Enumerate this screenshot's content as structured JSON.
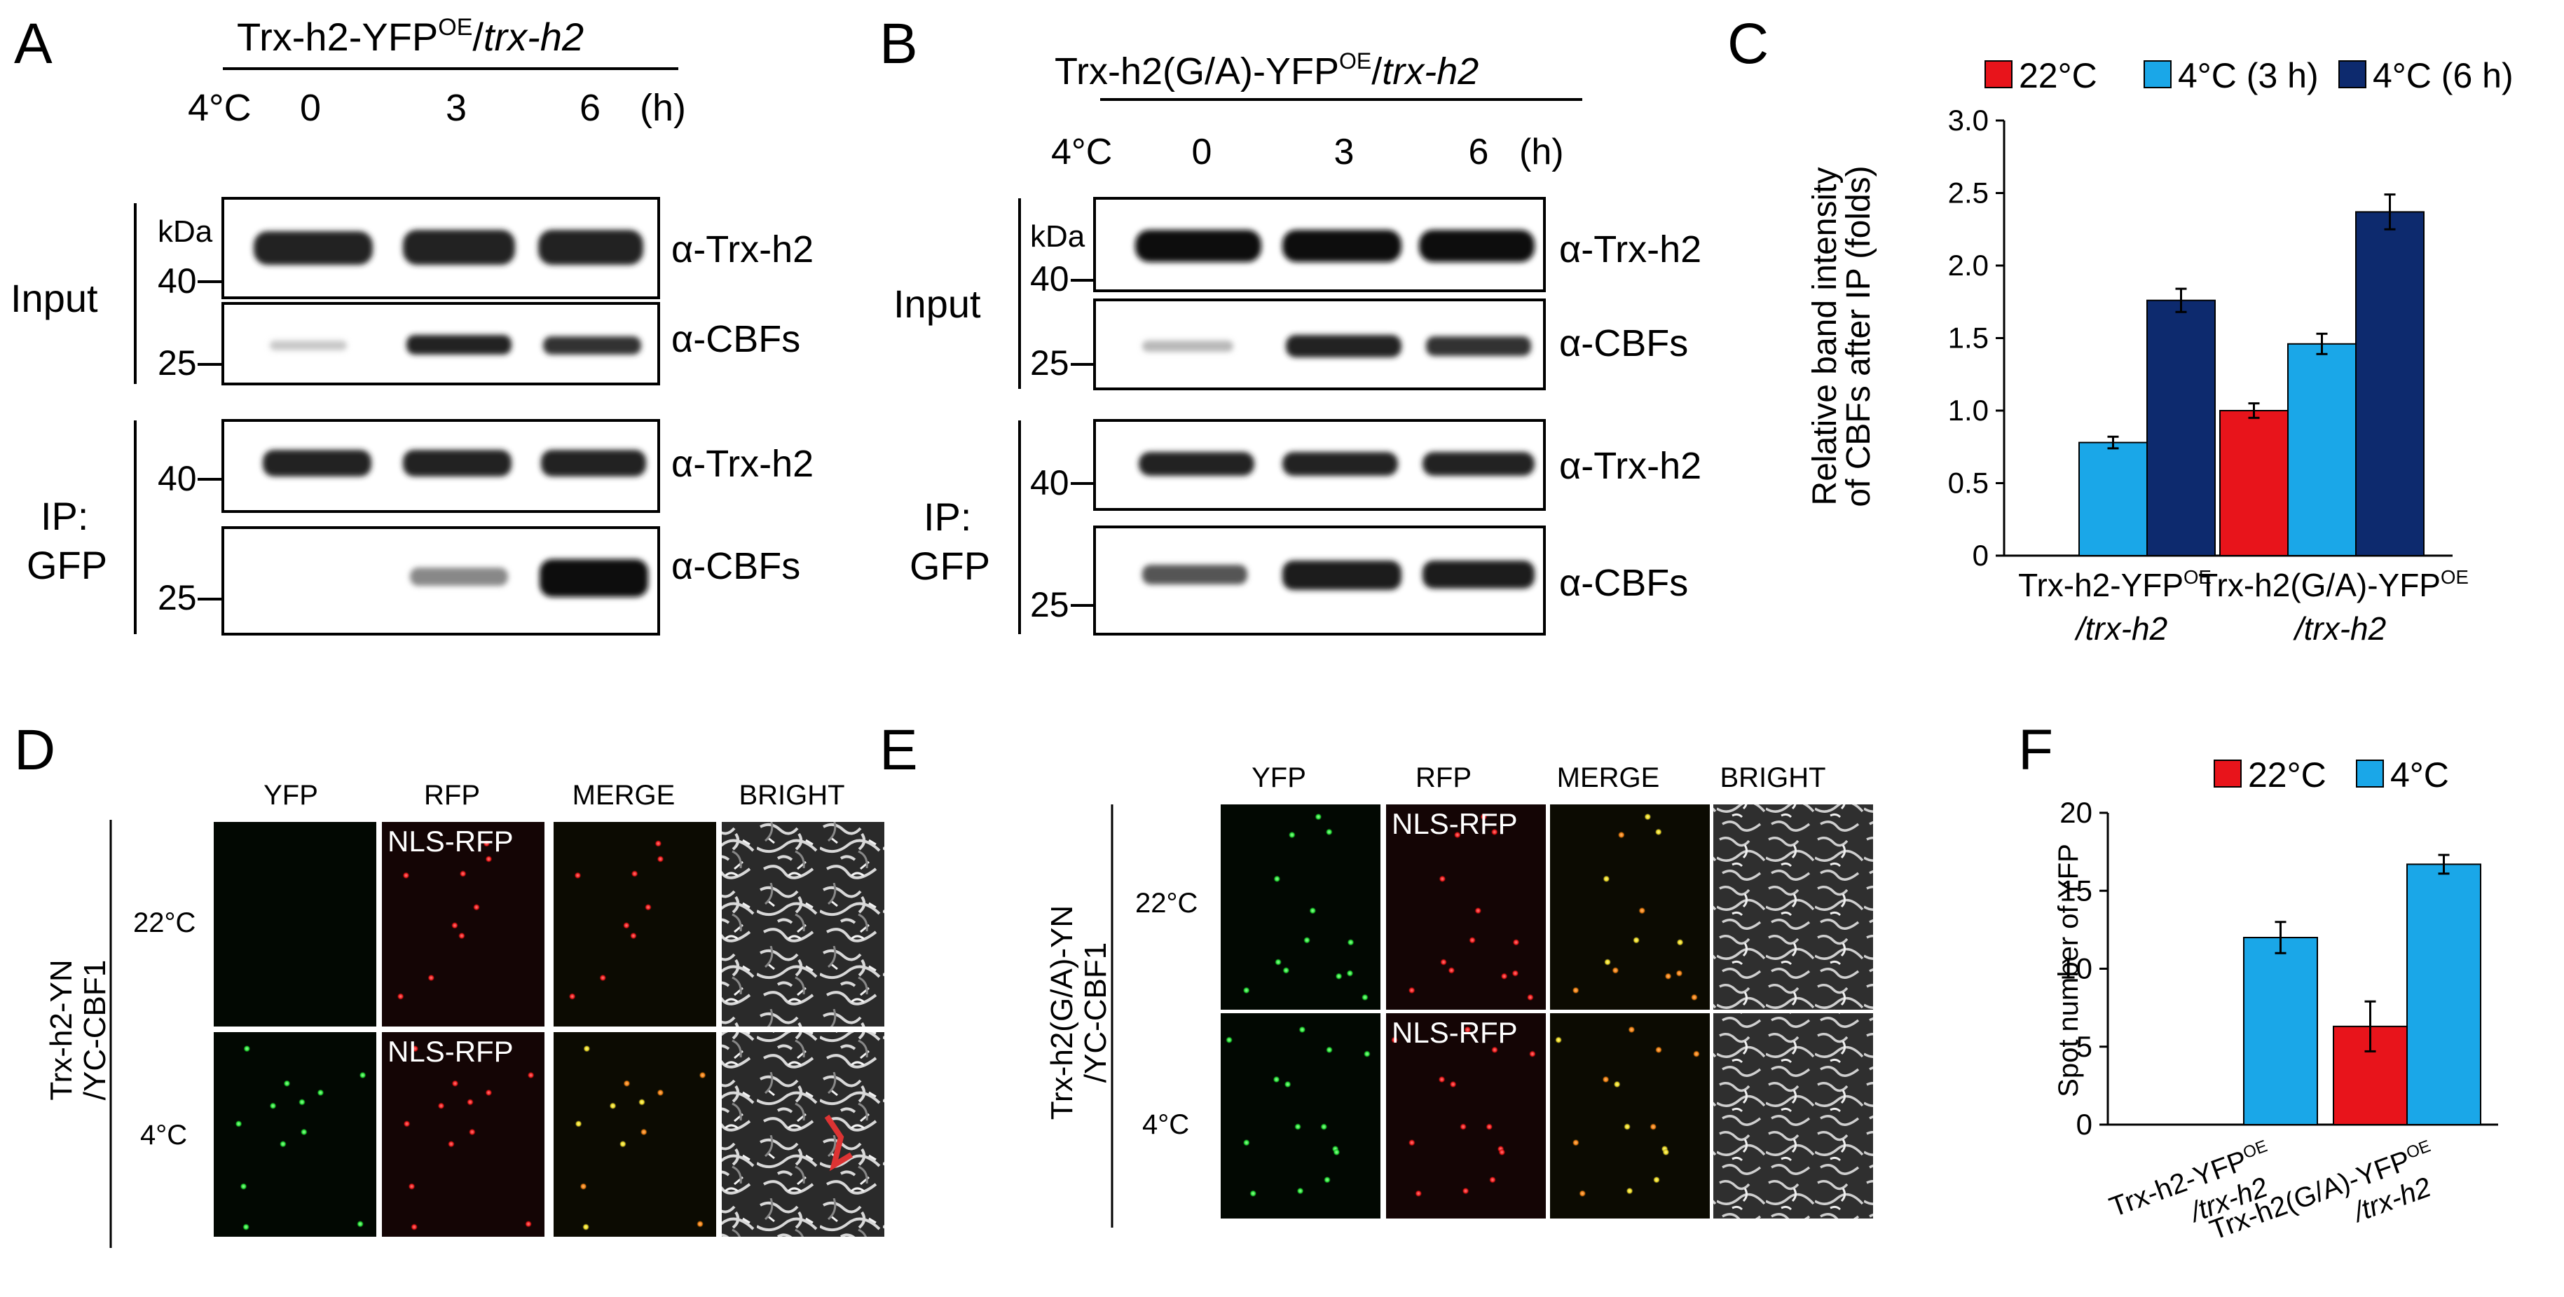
{
  "panels": {
    "A": {
      "letter": "A",
      "title_main": "Trx-h2-YFP",
      "title_sup": "OE",
      "title_sep": "/",
      "title_italic": "trx-h2",
      "temp_label": "4°C",
      "timepoints": [
        "0",
        "3",
        "6"
      ],
      "time_unit": "(h)",
      "kda": "kDa",
      "input_label": "Input",
      "ip_label_1": "IP:",
      "ip_label_2": "GFP",
      "markers": [
        "40",
        "25",
        "40",
        "25"
      ],
      "antibodies": [
        "α-Trx-h2",
        "α-CBFs",
        "α-Trx-h2",
        "α-CBFs"
      ]
    },
    "B": {
      "letter": "B",
      "title_main": "Trx-h2(G/A)-YFP",
      "title_sup": "OE",
      "title_sep": "/",
      "title_italic": "trx-h2",
      "temp_label": "4°C",
      "timepoints": [
        "0",
        "3",
        "6"
      ],
      "time_unit": "(h)",
      "kda": "kDa",
      "input_label": "Input",
      "ip_label_1": "IP:",
      "ip_label_2": "GFP",
      "markers": [
        "40",
        "25",
        "40",
        "25"
      ],
      "antibodies": [
        "α-Trx-h2",
        "α-CBFs",
        "α-Trx-h2",
        "α-CBFs"
      ]
    },
    "D": {
      "letter": "D",
      "columns": [
        "YFP",
        "RFP",
        "MERGE",
        "BRIGHT"
      ],
      "rows": [
        "22°C",
        "4°C"
      ],
      "nls_label": "NLS-RFP",
      "side_line1": "Trx-h2-YN",
      "side_line2": "/YC-CBF1"
    },
    "E": {
      "letter": "E",
      "columns": [
        "YFP",
        "RFP",
        "MERGE",
        "BRIGHT"
      ],
      "rows": [
        "22°C",
        "4°C"
      ],
      "nls_label": "NLS-RFP",
      "side_line1": "Trx-h2(G/A)-YN",
      "side_line2": "/YC-CBF1"
    }
  },
  "chart_data": [
    {
      "panel": "C",
      "type": "bar",
      "letter": "C",
      "categories": [
        {
          "main": "Trx-h2-YFP",
          "sup": "OE",
          "line2": "/trx-h2"
        },
        {
          "main": "Trx-h2(G/A)-YFP",
          "sup": "OE",
          "line2": "/trx-h2"
        }
      ],
      "series": [
        {
          "name": "22°C",
          "color": "#e8141b",
          "values": [
            0.0,
            1.0
          ],
          "errors": [
            0.0,
            0.05
          ]
        },
        {
          "name": "4°C (3 h)",
          "color": "#1aa7e8",
          "values": [
            0.78,
            1.46
          ],
          "errors": [
            0.04,
            0.07
          ]
        },
        {
          "name": "4°C (6 h)",
          "color": "#0d2a6e",
          "values": [
            1.76,
            2.37
          ],
          "errors": [
            0.08,
            0.12
          ]
        }
      ],
      "ylabel_line1": "Relative band intensity",
      "ylabel_line2": "of CBFs after IP (folds)",
      "ylim": [
        0,
        3.0
      ],
      "yticks": [
        "0",
        "0.5",
        "1.0",
        "1.5",
        "2.0",
        "2.5",
        "3.0"
      ],
      "legend": "top"
    },
    {
      "panel": "F",
      "type": "bar",
      "letter": "F",
      "categories": [
        {
          "main": "Trx-h2-YFP",
          "sup": "OE",
          "line2": "/trx-h2"
        },
        {
          "main": "Trx-h2(G/A)-YFP",
          "sup": "OE",
          "line2": "/trx-h2"
        }
      ],
      "series": [
        {
          "name": "22°C",
          "color": "#e8141b",
          "values": [
            0,
            6.3
          ],
          "errors": [
            0,
            1.6
          ]
        },
        {
          "name": "4°C",
          "color": "#1aa7e8",
          "values": [
            12.0,
            16.7
          ],
          "errors": [
            1.0,
            0.6
          ]
        }
      ],
      "ylabel_line1": "Spot number of YFP",
      "ylim": [
        0,
        20
      ],
      "yticks": [
        "0",
        "5",
        "10",
        "15",
        "20"
      ],
      "legend": "top"
    }
  ]
}
